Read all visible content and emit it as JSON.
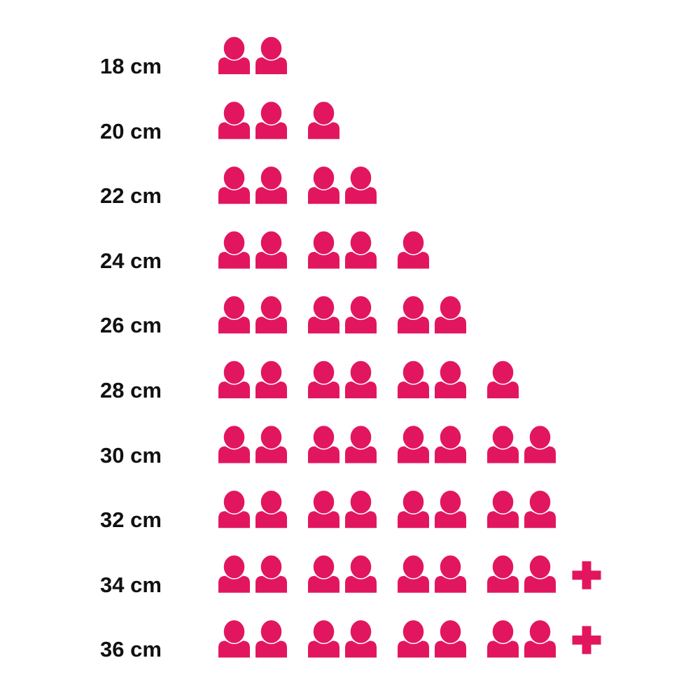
{
  "chart_data": {
    "type": "pictogram",
    "icon": "person-icon",
    "extra_icon": "plus-icon",
    "color": "#E2165E",
    "categories": [
      "18 cm",
      "20 cm",
      "22 cm",
      "24 cm",
      "26 cm",
      "28 cm",
      "30 cm",
      "32 cm",
      "34 cm",
      "36 cm"
    ],
    "values": [
      2,
      3,
      4,
      5,
      6,
      7,
      8,
      8,
      8,
      8
    ],
    "plus": [
      false,
      false,
      false,
      false,
      false,
      false,
      false,
      false,
      true,
      true
    ]
  }
}
